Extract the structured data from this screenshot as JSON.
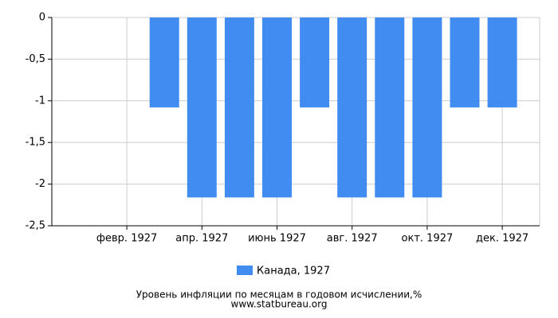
{
  "chart_data": {
    "type": "bar",
    "categories": [
      null,
      "февр. 1927",
      null,
      "апр. 1927",
      null,
      "июнь 1927",
      null,
      "авг. 1927",
      null,
      "окт. 1927",
      null,
      "дек. 1927"
    ],
    "series": [
      {
        "name": "Канада, 1927",
        "color": "#418cf0",
        "values": [
          null,
          null,
          -1.08,
          -2.16,
          -2.16,
          -2.16,
          -1.08,
          -2.16,
          -2.16,
          -2.16,
          -1.08,
          -1.08
        ]
      }
    ],
    "ylim": [
      -2.5,
      0
    ],
    "yticks": [
      {
        "value": 0,
        "label": "0"
      },
      {
        "value": -0.5,
        "label": "-0,5"
      },
      {
        "value": -1,
        "label": "-1"
      },
      {
        "value": -1.5,
        "label": "-1,5"
      },
      {
        "value": -2,
        "label": "-2"
      },
      {
        "value": -2.5,
        "label": "-2,5"
      }
    ],
    "grid": true,
    "title": "Уровень инфляции по месяцам в годовом исчислении,%",
    "source": "www.statbureau.org"
  }
}
